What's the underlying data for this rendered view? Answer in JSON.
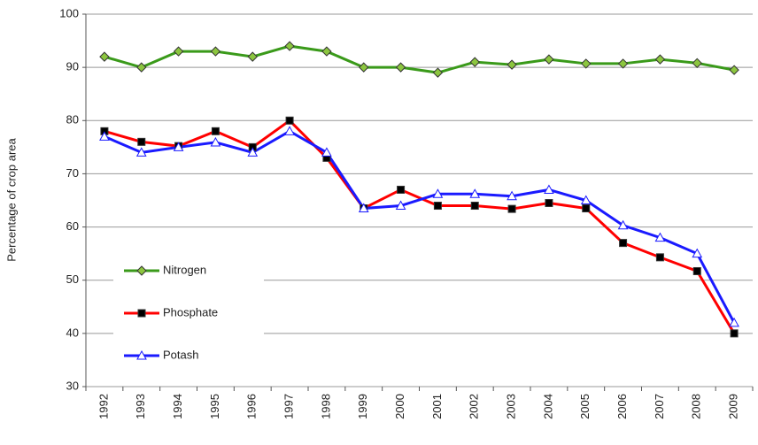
{
  "chart_data": {
    "type": "line",
    "y_label": "Percentage of crop area",
    "categories": [
      "1992",
      "1993",
      "1994",
      "1995",
      "1996",
      "1997",
      "1998",
      "1999",
      "2000",
      "2001",
      "2002",
      "2003",
      "2004",
      "2005",
      "2006",
      "2007",
      "2008",
      "2009"
    ],
    "series": [
      {
        "name": "Nitrogen",
        "color": "#3a9a1a",
        "marker": "diamond",
        "marker_color": "#8cc63f",
        "values": [
          92,
          90,
          93,
          93,
          92,
          94,
          93,
          90,
          90,
          89,
          91,
          90.5,
          91.5,
          90.7,
          90.7,
          91.5,
          90.8,
          89.5
        ]
      },
      {
        "name": "Phosphate",
        "color": "#ff0000",
        "marker": "square",
        "marker_color": "#000000",
        "values": [
          78,
          76,
          75.2,
          78,
          75,
          80,
          73,
          63.5,
          67,
          64,
          64,
          63.4,
          64.5,
          63.5,
          57,
          54.3,
          51.7,
          40
        ]
      },
      {
        "name": "Potash",
        "color": "#1a1aff",
        "marker": "triangle",
        "marker_color": "#ffffff",
        "values": [
          77,
          74,
          75,
          75.9,
          74,
          78,
          74,
          63.5,
          64,
          66.2,
          66.2,
          65.8,
          67,
          65,
          60.3,
          58,
          55,
          42
        ]
      }
    ],
    "ylim": [
      30,
      100
    ],
    "yticks": [
      30,
      40,
      50,
      60,
      70,
      80,
      90,
      100
    ],
    "grid": true
  }
}
